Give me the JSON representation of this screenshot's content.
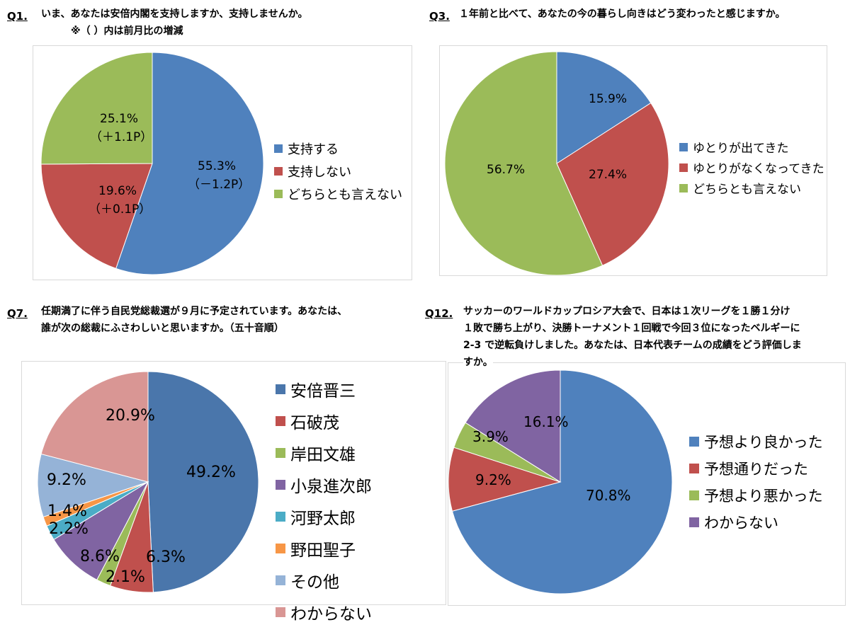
{
  "chart_data": [
    {
      "type": "pie",
      "id": "q1",
      "question_number": "Q1.",
      "title": "いま、あなたは安倍内閣を支持しますか、支持しませんか。",
      "subtitle": "※（ ）内は前月比の増減",
      "slices": [
        {
          "label": "支持する",
          "value": 55.3,
          "value_label": "55.3%",
          "change": "（－1.2P）",
          "color": "#4f81bd"
        },
        {
          "label": "支持しない",
          "value": 19.6,
          "value_label": "19.6%",
          "change": "（＋0.1P）",
          "color": "#c0504d"
        },
        {
          "label": "どちらとも言えない",
          "value": 25.1,
          "value_label": "25.1%",
          "change": "（＋1.1P）",
          "color": "#9bbb59"
        }
      ],
      "legend_position": "right"
    },
    {
      "type": "pie",
      "id": "q3",
      "question_number": "Q3.",
      "title": "１年前と比べて、あなたの今の暮らし向きはどう変わったと感じますか。",
      "slices": [
        {
          "label": "ゆとりが出てきた",
          "value": 15.9,
          "value_label": "15.9%",
          "color": "#4f81bd"
        },
        {
          "label": "ゆとりがなくなってきた",
          "value": 27.4,
          "value_label": "27.4%",
          "color": "#c0504d"
        },
        {
          "label": "どちらとも言えない",
          "value": 56.7,
          "value_label": "56.7%",
          "color": "#9bbb59"
        }
      ],
      "legend_position": "right"
    },
    {
      "type": "pie",
      "id": "q7",
      "question_number": "Q7.",
      "title": "任期満了に伴う自民党総裁選が９月に予定されています。あなたは、",
      "title_line2": "誰が次の総裁にふさわしいと思いますか。（五十音順）",
      "slices": [
        {
          "label": "安倍晋三",
          "value": 49.2,
          "value_label": "49.2%",
          "color": "#4a76ab"
        },
        {
          "label": "石破茂",
          "value": 6.3,
          "value_label": "6.3%",
          "color": "#c0504d"
        },
        {
          "label": "岸田文雄",
          "value": 2.1,
          "value_label": "2.1%",
          "color": "#9bbb59"
        },
        {
          "label": "小泉進次郎",
          "value": 8.6,
          "value_label": "8.6%",
          "color": "#8064a2"
        },
        {
          "label": "河野太郎",
          "value": 2.2,
          "value_label": "2.2%",
          "color": "#4bacc6"
        },
        {
          "label": "野田聖子",
          "value": 1.4,
          "value_label": "1.4%",
          "color": "#f79646"
        },
        {
          "label": "その他",
          "value": 9.2,
          "value_label": "9.2%",
          "color": "#95b3d7"
        },
        {
          "label": "わからない",
          "value": 20.9,
          "value_label": "20.9%",
          "color": "#d99694"
        }
      ],
      "legend_position": "right"
    },
    {
      "type": "pie",
      "id": "q12",
      "question_number": "Q12.",
      "title": "サッカーのワールドカップロシア大会で、日本は１次リーグを１勝１分け",
      "title_line2": "１敗で勝ち上がり、決勝トーナメント１回戦で今回３位になったベルギーに",
      "title_line3": "2-3 で逆転負けしました。あなたは、日本代表チームの成績をどう評価しま",
      "title_line4": "すか。",
      "slices": [
        {
          "label": "予想より良かった",
          "value": 70.8,
          "value_label": "70.8%",
          "color": "#4f81bd"
        },
        {
          "label": "予想通りだった",
          "value": 9.2,
          "value_label": "9.2%",
          "color": "#c0504d"
        },
        {
          "label": "予想より悪かった",
          "value": 3.9,
          "value_label": "3.9%",
          "color": "#9bbb59"
        },
        {
          "label": "わからない",
          "value": 16.1,
          "value_label": "16.1%",
          "color": "#8064a2"
        }
      ],
      "legend_position": "right"
    }
  ]
}
